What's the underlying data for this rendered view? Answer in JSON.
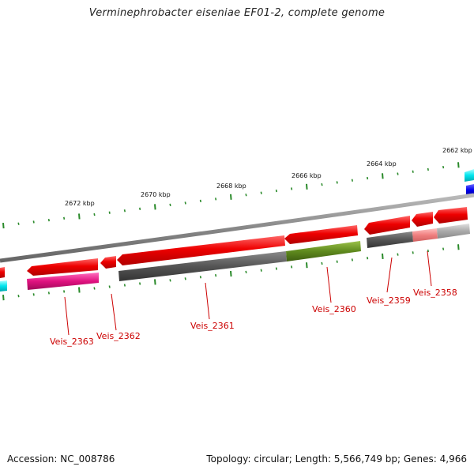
{
  "title": "Verminephrobacter eiseniae EF01-2, complete genome",
  "footer": {
    "accession": "Accession: NC_008786",
    "summary": "Topology: circular; Length: 5,566,749 bp; Genes: 4,966"
  },
  "kbp_labels": [
    "2672 kbp",
    "2670 kbp",
    "2668 kbp",
    "2666 kbp",
    "2664 kbp",
    "2662 kbp"
  ],
  "gene_labels": [
    "Veis_2363",
    "Veis_2362",
    "Veis_2361",
    "Veis_2360",
    "Veis_2359",
    "Veis_2358"
  ],
  "colors": {
    "forward_gene": "#ee0000",
    "backbone": "#888888",
    "tick": "#2a8a2a",
    "label": "#cc0000",
    "cds_magenta": "#e0127f",
    "cds_grey": "#555555",
    "cds_olive": "#5f8a1e",
    "cds_pink": "#f08080",
    "cds_lightgrey": "#aaaaaa",
    "cyan": "#00e5ee",
    "blue": "#0000ee"
  }
}
